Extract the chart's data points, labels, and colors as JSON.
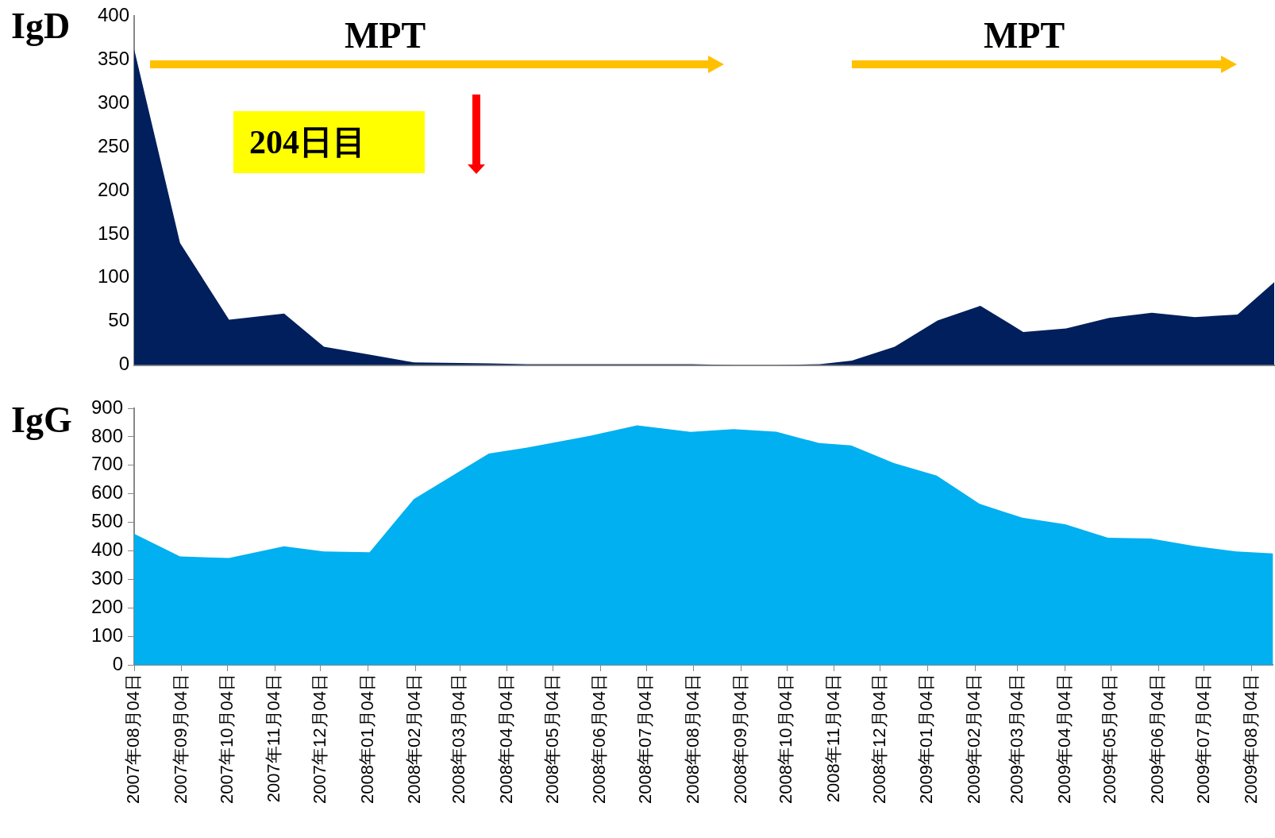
{
  "chart_data": [
    {
      "type": "area",
      "ylabel": "IgD",
      "x": [
        "2007-08-04",
        "2007-09-03",
        "2007-10-05",
        "2007-11-10",
        "2007-12-06",
        "2008-01-05",
        "2008-02-03",
        "2008-03-23",
        "2008-04-17",
        "2008-05-28",
        "2008-06-28",
        "2008-08-02",
        "2008-08-30",
        "2008-09-27",
        "2008-10-25",
        "2008-11-15",
        "2008-12-13",
        "2009-01-10",
        "2009-02-07",
        "2009-03-07",
        "2009-04-04",
        "2009-05-02",
        "2009-05-30",
        "2009-06-27",
        "2009-07-25",
        "2009-08-18"
      ],
      "series": [
        {
          "color": "#001f5c",
          "values": [
            362,
            140,
            52,
            59,
            21,
            12,
            3,
            2,
            1,
            1,
            1,
            1,
            0,
            0,
            1,
            5,
            21,
            51,
            68,
            38,
            42,
            54,
            60,
            55,
            58,
            95
          ]
        }
      ],
      "xlim": [
        "2007-08-04",
        "2009-08-18"
      ],
      "ylim": [
        0,
        400
      ],
      "yticks": [
        0,
        50,
        100,
        150,
        200,
        250,
        300,
        350,
        400
      ],
      "tick_labels": "y",
      "grid": false,
      "legend": false,
      "marker": "none",
      "annotations": [
        "MPT",
        "MPT",
        "204日目"
      ]
    },
    {
      "type": "area",
      "ylabel": "IgG",
      "x": [
        "2007-08-04",
        "2007-09-03",
        "2007-10-05",
        "2007-11-10",
        "2007-12-06",
        "2008-01-05",
        "2008-02-03",
        "2008-03-23",
        "2008-04-17",
        "2008-05-28",
        "2008-06-28",
        "2008-08-02",
        "2008-08-30",
        "2008-09-27",
        "2008-10-25",
        "2008-11-15",
        "2008-12-13",
        "2009-01-10",
        "2009-02-07",
        "2009-03-07",
        "2009-04-04",
        "2009-05-02",
        "2009-05-30",
        "2009-06-27",
        "2009-07-25",
        "2009-08-18"
      ],
      "series": [
        {
          "color": "#00b0f0",
          "values": [
            460,
            380,
            375,
            416,
            398,
            395,
            582,
            741,
            762,
            803,
            840,
            817,
            827,
            818,
            778,
            770,
            708,
            664,
            565,
            516,
            493,
            446,
            443,
            417,
            398,
            391
          ]
        }
      ],
      "xlim": [
        "2007-08-04",
        "2009-08-18"
      ],
      "ylim": [
        0,
        900
      ],
      "yticks": [
        0,
        100,
        200,
        300,
        400,
        500,
        600,
        700,
        800,
        900
      ],
      "xticks": [
        {
          "value": "2007-08-04",
          "label": "2007年08月04日"
        },
        {
          "value": "2007-09-04",
          "label": "2007年09月04日"
        },
        {
          "value": "2007-10-04",
          "label": "2007年10月04日"
        },
        {
          "value": "2007-11-04",
          "label": "2007年11月04日"
        },
        {
          "value": "2007-12-04",
          "label": "2007年12月04日"
        },
        {
          "value": "2008-01-04",
          "label": "2008年01月04日"
        },
        {
          "value": "2008-02-04",
          "label": "2008年02月04日"
        },
        {
          "value": "2008-03-04",
          "label": "2008年03月04日"
        },
        {
          "value": "2008-04-04",
          "label": "2008年04月04日"
        },
        {
          "value": "2008-05-04",
          "label": "2008年05月04日"
        },
        {
          "value": "2008-06-04",
          "label": "2008年06月04日"
        },
        {
          "value": "2008-07-04",
          "label": "2008年07月04日"
        },
        {
          "value": "2008-08-04",
          "label": "2008年08月04日"
        },
        {
          "value": "2008-09-04",
          "label": "2008年09月04日"
        },
        {
          "value": "2008-10-04",
          "label": "2008年10月04日"
        },
        {
          "value": "2008-11-04",
          "label": "2008年11月04日"
        },
        {
          "value": "2008-12-04",
          "label": "2008年12月04日"
        },
        {
          "value": "2009-01-04",
          "label": "2009年01月04日"
        },
        {
          "value": "2009-02-04",
          "label": "2009年02月04日"
        },
        {
          "value": "2009-03-04",
          "label": "2009年03月04日"
        },
        {
          "value": "2009-04-04",
          "label": "2009年04月04日"
        },
        {
          "value": "2009-05-04",
          "label": "2009年05月04日"
        },
        {
          "value": "2009-06-04",
          "label": "2009年06月04日"
        },
        {
          "value": "2009-07-04",
          "label": "2009年07月04日"
        },
        {
          "value": "2009-08-04",
          "label": "2009年08月04日"
        }
      ],
      "grid": false,
      "legend": false,
      "marker": "none"
    }
  ]
}
